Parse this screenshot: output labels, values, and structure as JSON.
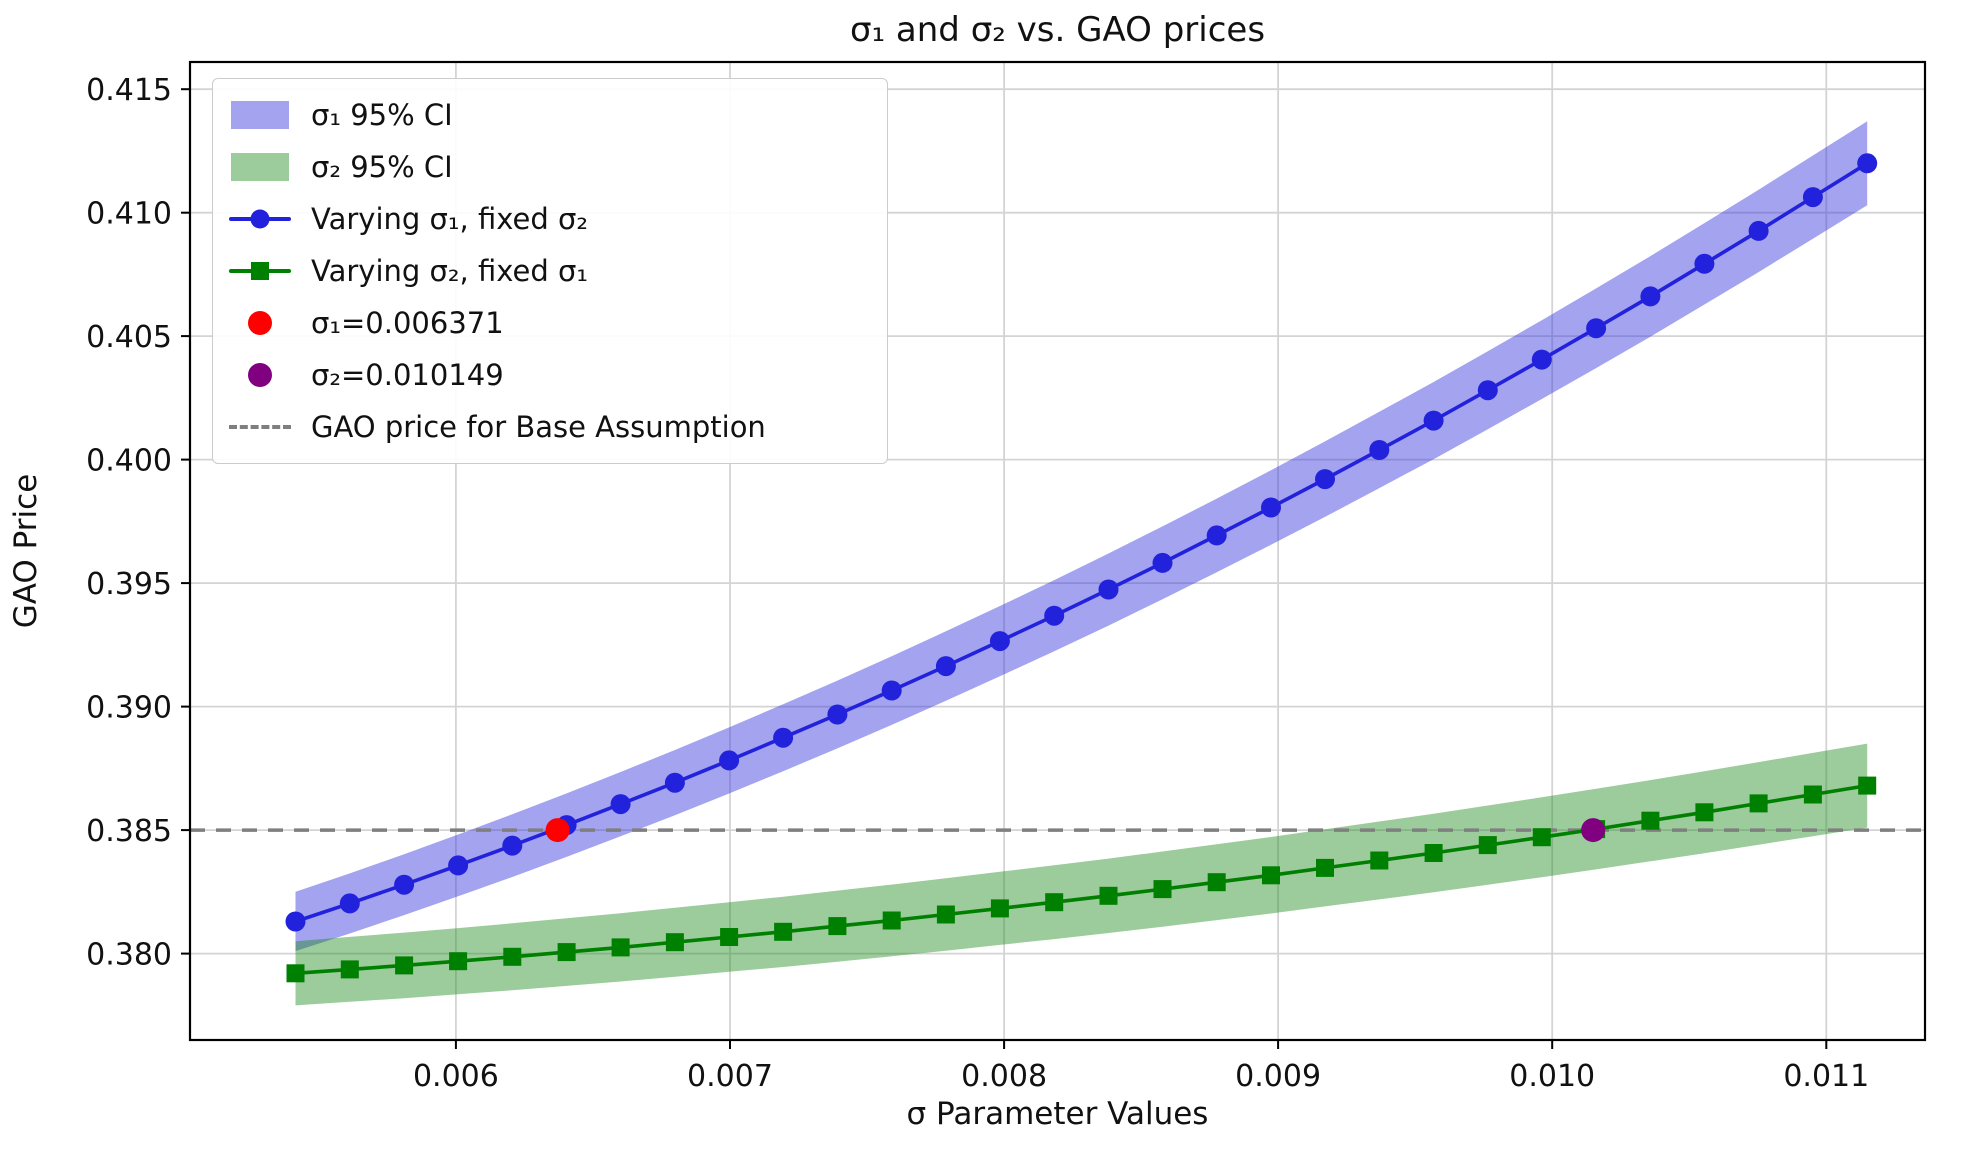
{
  "chart_data": {
    "type": "line",
    "title": "σ₁ and σ₂ vs. GAO prices",
    "xlabel": "σ Parameter Values",
    "ylabel": "GAO Price",
    "xlim": [
      0.00503,
      0.01136
    ],
    "ylim": [
      0.3765,
      0.4161
    ],
    "grid": true,
    "legend_position": "upper-left",
    "x_ticks": [
      0.006,
      0.007,
      0.008,
      0.009,
      0.01,
      0.011
    ],
    "x_tick_labels": [
      "0.006",
      "0.007",
      "0.008",
      "0.009",
      "0.010",
      "0.011"
    ],
    "y_ticks": [
      0.38,
      0.385,
      0.39,
      0.395,
      0.4,
      0.405,
      0.41,
      0.415
    ],
    "y_tick_labels": [
      "0.380",
      "0.385",
      "0.390",
      "0.395",
      "0.400",
      "0.405",
      "0.410",
      "0.415"
    ],
    "x": [
      0.005415,
      0.005613,
      0.005811,
      0.006008,
      0.006206,
      0.006404,
      0.006601,
      0.006799,
      0.006997,
      0.007194,
      0.007392,
      0.00759,
      0.007788,
      0.007985,
      0.008183,
      0.008381,
      0.008578,
      0.008776,
      0.008974,
      0.009171,
      0.009369,
      0.009567,
      0.009765,
      0.009962,
      0.01016,
      0.010358,
      0.010555,
      0.010753,
      0.010951,
      0.011149
    ],
    "series": [
      {
        "name": "Varying σ₁, fixed σ₂",
        "color": "#2222dd",
        "marker": "circle",
        "ci_label": "σ₁ 95% CI",
        "ci_fill": "#3333dd",
        "ci_opacity": 0.45,
        "ci_half_start": 0.0012,
        "ci_half_end": 0.0017,
        "values": [
          0.3813,
          0.38203,
          0.38279,
          0.38357,
          0.38437,
          0.3852,
          0.38605,
          0.38692,
          0.38782,
          0.38874,
          0.38968,
          0.39065,
          0.39164,
          0.39265,
          0.39368,
          0.39474,
          0.39582,
          0.39693,
          0.39806,
          0.39921,
          0.40039,
          0.40158,
          0.40281,
          0.40405,
          0.40532,
          0.40661,
          0.40793,
          0.40926,
          0.41063,
          0.412
        ]
      },
      {
        "name": "Varying σ₂, fixed σ₁",
        "color": "#008000",
        "marker": "square",
        "ci_label": "σ₂ 95% CI",
        "ci_fill": "#238b23",
        "ci_opacity": 0.45,
        "ci_half_start": 0.0013,
        "ci_half_end": 0.0017,
        "values": [
          0.3792,
          0.37936,
          0.37952,
          0.37969,
          0.37987,
          0.38006,
          0.38025,
          0.38046,
          0.38067,
          0.38088,
          0.38111,
          0.38134,
          0.38158,
          0.38183,
          0.38208,
          0.38234,
          0.38261,
          0.38289,
          0.38317,
          0.38347,
          0.38377,
          0.38407,
          0.38439,
          0.38471,
          0.38504,
          0.38538,
          0.38572,
          0.38608,
          0.38644,
          0.3868
        ]
      }
    ],
    "reference_line": {
      "label": "GAO price for Base Assumption",
      "y": 0.385,
      "color": "#7f7f7f",
      "style": "dashed"
    },
    "points": [
      {
        "label": "σ₁=0.006371",
        "x": 0.006371,
        "y": 0.385,
        "color": "#ff0000"
      },
      {
        "label": "σ₂=0.010149",
        "x": 0.010149,
        "y": 0.385,
        "color": "#800080"
      }
    ],
    "legend_items": [
      {
        "label": "σ₁ 95% CI",
        "swatch": "patch",
        "color": "#3333dd",
        "opacity": 0.45
      },
      {
        "label": "σ₂ 95% CI",
        "swatch": "patch",
        "color": "#238b23",
        "opacity": 0.45
      },
      {
        "label": "Varying σ₁, fixed σ₂",
        "swatch": "line-circle",
        "color": "#2222dd"
      },
      {
        "label": "Varying σ₂, fixed σ₁",
        "swatch": "line-square",
        "color": "#008000"
      },
      {
        "label": "σ₁=0.006371",
        "swatch": "dot",
        "color": "#ff0000"
      },
      {
        "label": "σ₂=0.010149",
        "swatch": "dot",
        "color": "#800080"
      },
      {
        "label": "GAO price for Base Assumption",
        "swatch": "dashed",
        "color": "#7f7f7f"
      }
    ],
    "colors": {
      "grid": "#d4d4d4",
      "spine": "#000000",
      "text": "#111111"
    }
  }
}
